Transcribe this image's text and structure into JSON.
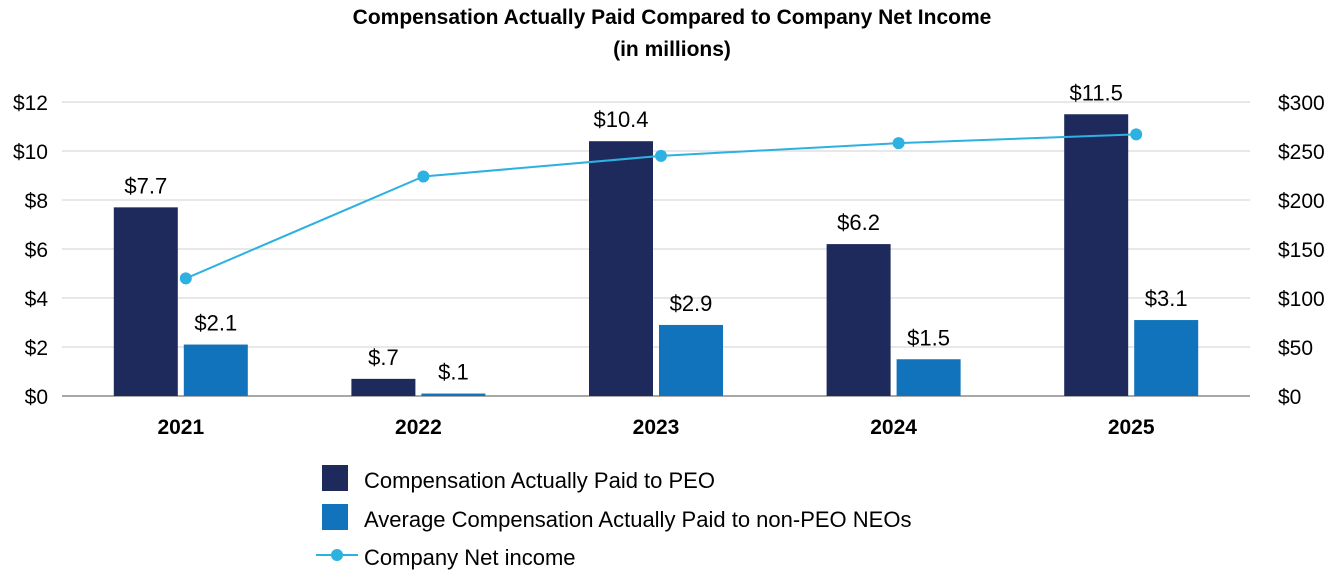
{
  "chart_data": {
    "type": "bar",
    "title": "Compensation Actually Paid Compared to Company Net Income",
    "subtitle": "(in millions)",
    "categories": [
      "2021",
      "2022",
      "2023",
      "2024",
      "2025"
    ],
    "y_left": {
      "ylim": [
        0,
        12
      ],
      "ticks": [
        0,
        2,
        4,
        6,
        8,
        10,
        12
      ],
      "tick_labels": [
        "$0",
        "$2",
        "$4",
        "$6",
        "$8",
        "$10",
        "$12"
      ]
    },
    "y_right": {
      "ylim": [
        0,
        300
      ],
      "ticks": [
        0,
        50,
        100,
        150,
        200,
        250,
        300
      ],
      "tick_labels": [
        "$0",
        "$50",
        "$100",
        "$150",
        "$200",
        "$250",
        "$300"
      ]
    },
    "grid": true,
    "legend_position": "bottom",
    "series": [
      {
        "name": "Compensation Actually Paid to PEO",
        "type": "bar",
        "axis": "left",
        "color": "#1f2a5c",
        "values": [
          7.7,
          0.7,
          10.4,
          6.2,
          11.5
        ],
        "labels": [
          "$7.7",
          "$.7",
          "$10.4",
          "$6.2",
          "$11.5"
        ]
      },
      {
        "name": "Average Compensation Actually Paid to non-PEO NEOs",
        "type": "bar",
        "axis": "left",
        "color": "#1173bb",
        "values": [
          2.1,
          0.1,
          2.9,
          1.5,
          3.1
        ],
        "labels": [
          "$2.1",
          "$.1",
          "$2.9",
          "$1.5",
          "$3.1"
        ]
      },
      {
        "name": "Company Net income",
        "type": "line",
        "axis": "right",
        "color": "#2cb1e1",
        "values": [
          120,
          224,
          245,
          258,
          267
        ]
      }
    ]
  }
}
